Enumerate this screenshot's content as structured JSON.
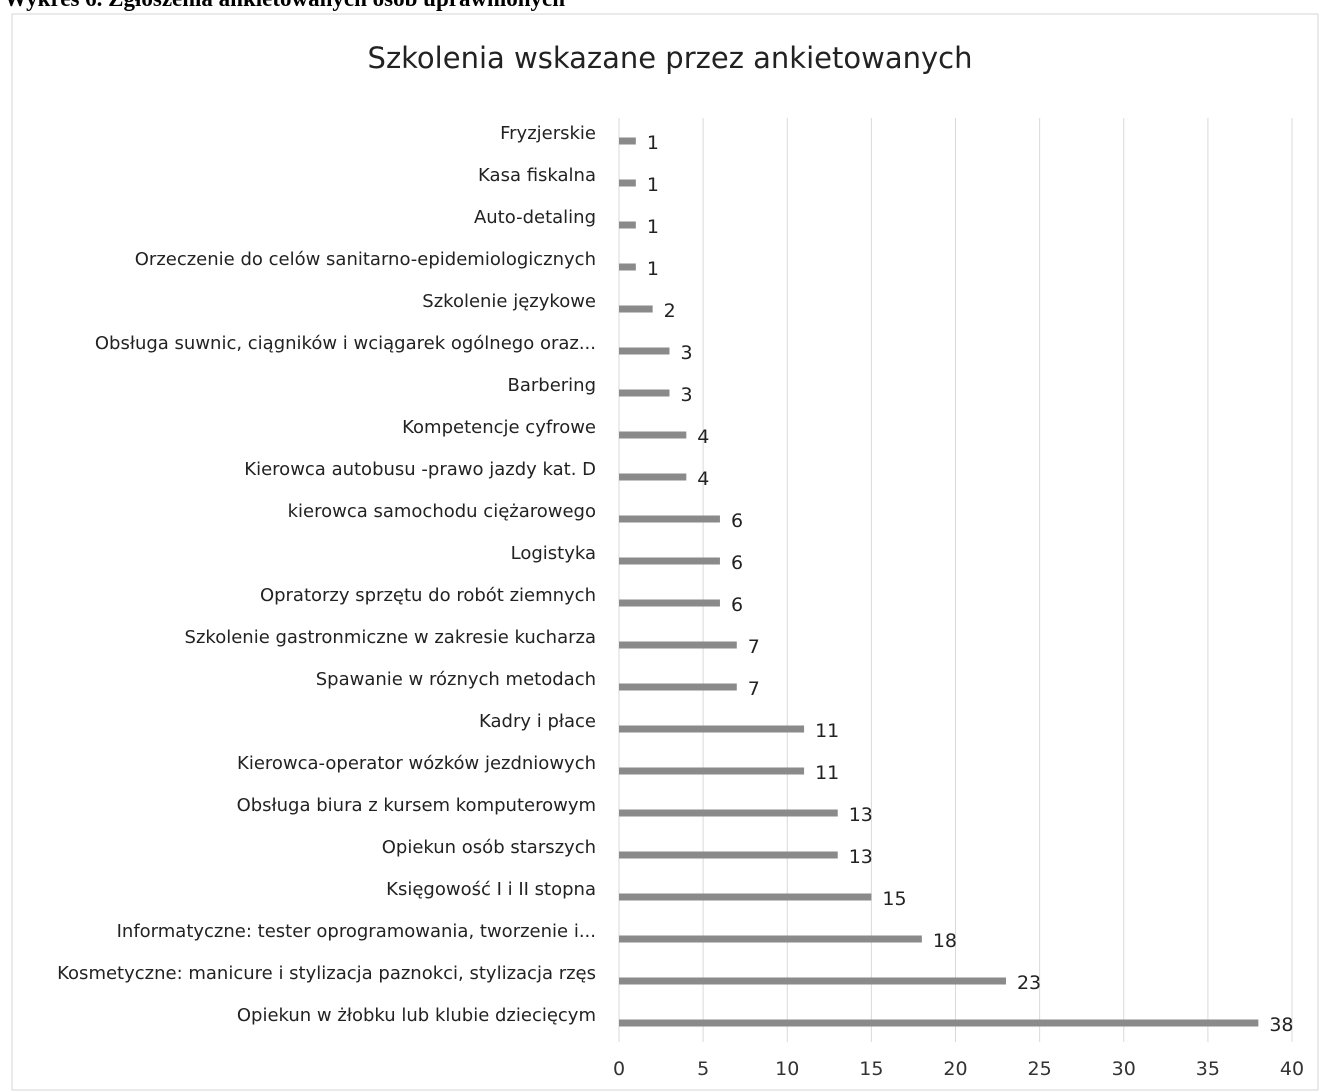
{
  "heading": "Wykres 6. Zgłoszenia ankietowanych osób uprawnionych",
  "chart_data": {
    "type": "bar",
    "orientation": "horizontal",
    "title": "Szkolenia wskazane przez ankietowanych",
    "categories": [
      "Fryzjerskie",
      "Kasa fiskalna",
      "Auto-detaling",
      "Orzeczenie do celów sanitarno-epidemiologicznych",
      "Szkolenie językowe",
      "Obsługa suwnic, ciągników i wciągarek ogólnego oraz...",
      "Barbering",
      "Kompetencje cyfrowe",
      "Kierowca autobusu -prawo jazdy kat. D",
      "kierowca samochodu ciężarowego",
      "Logistyka",
      "Opratorzy sprzętu do robót ziemnych",
      "Szkolenie gastronmiczne w zakresie kucharza",
      "Spawanie w róznych metodach",
      "Kadry i płace",
      "Kierowca-operator wózków jezdniowych",
      "Obsługa biura z kursem komputerowym",
      "Opiekun osób starszych",
      "Księgowość I i II stopna",
      "Informatyczne: tester oprogramowania, tworzenie i...",
      "Kosmetyczne: manicure i stylizacja paznokci, stylizacja rzęs",
      "Opiekun w żłobku lub klubie dziecięcym"
    ],
    "values": [
      1,
      1,
      1,
      1,
      2,
      3,
      3,
      4,
      4,
      6,
      6,
      6,
      7,
      7,
      11,
      11,
      13,
      13,
      15,
      18,
      23,
      38
    ],
    "color": "#8a8a8a",
    "xlim": [
      0,
      40
    ],
    "xticks": [
      0,
      5,
      10,
      15,
      20,
      25,
      30,
      35,
      40
    ],
    "grid": true
  }
}
